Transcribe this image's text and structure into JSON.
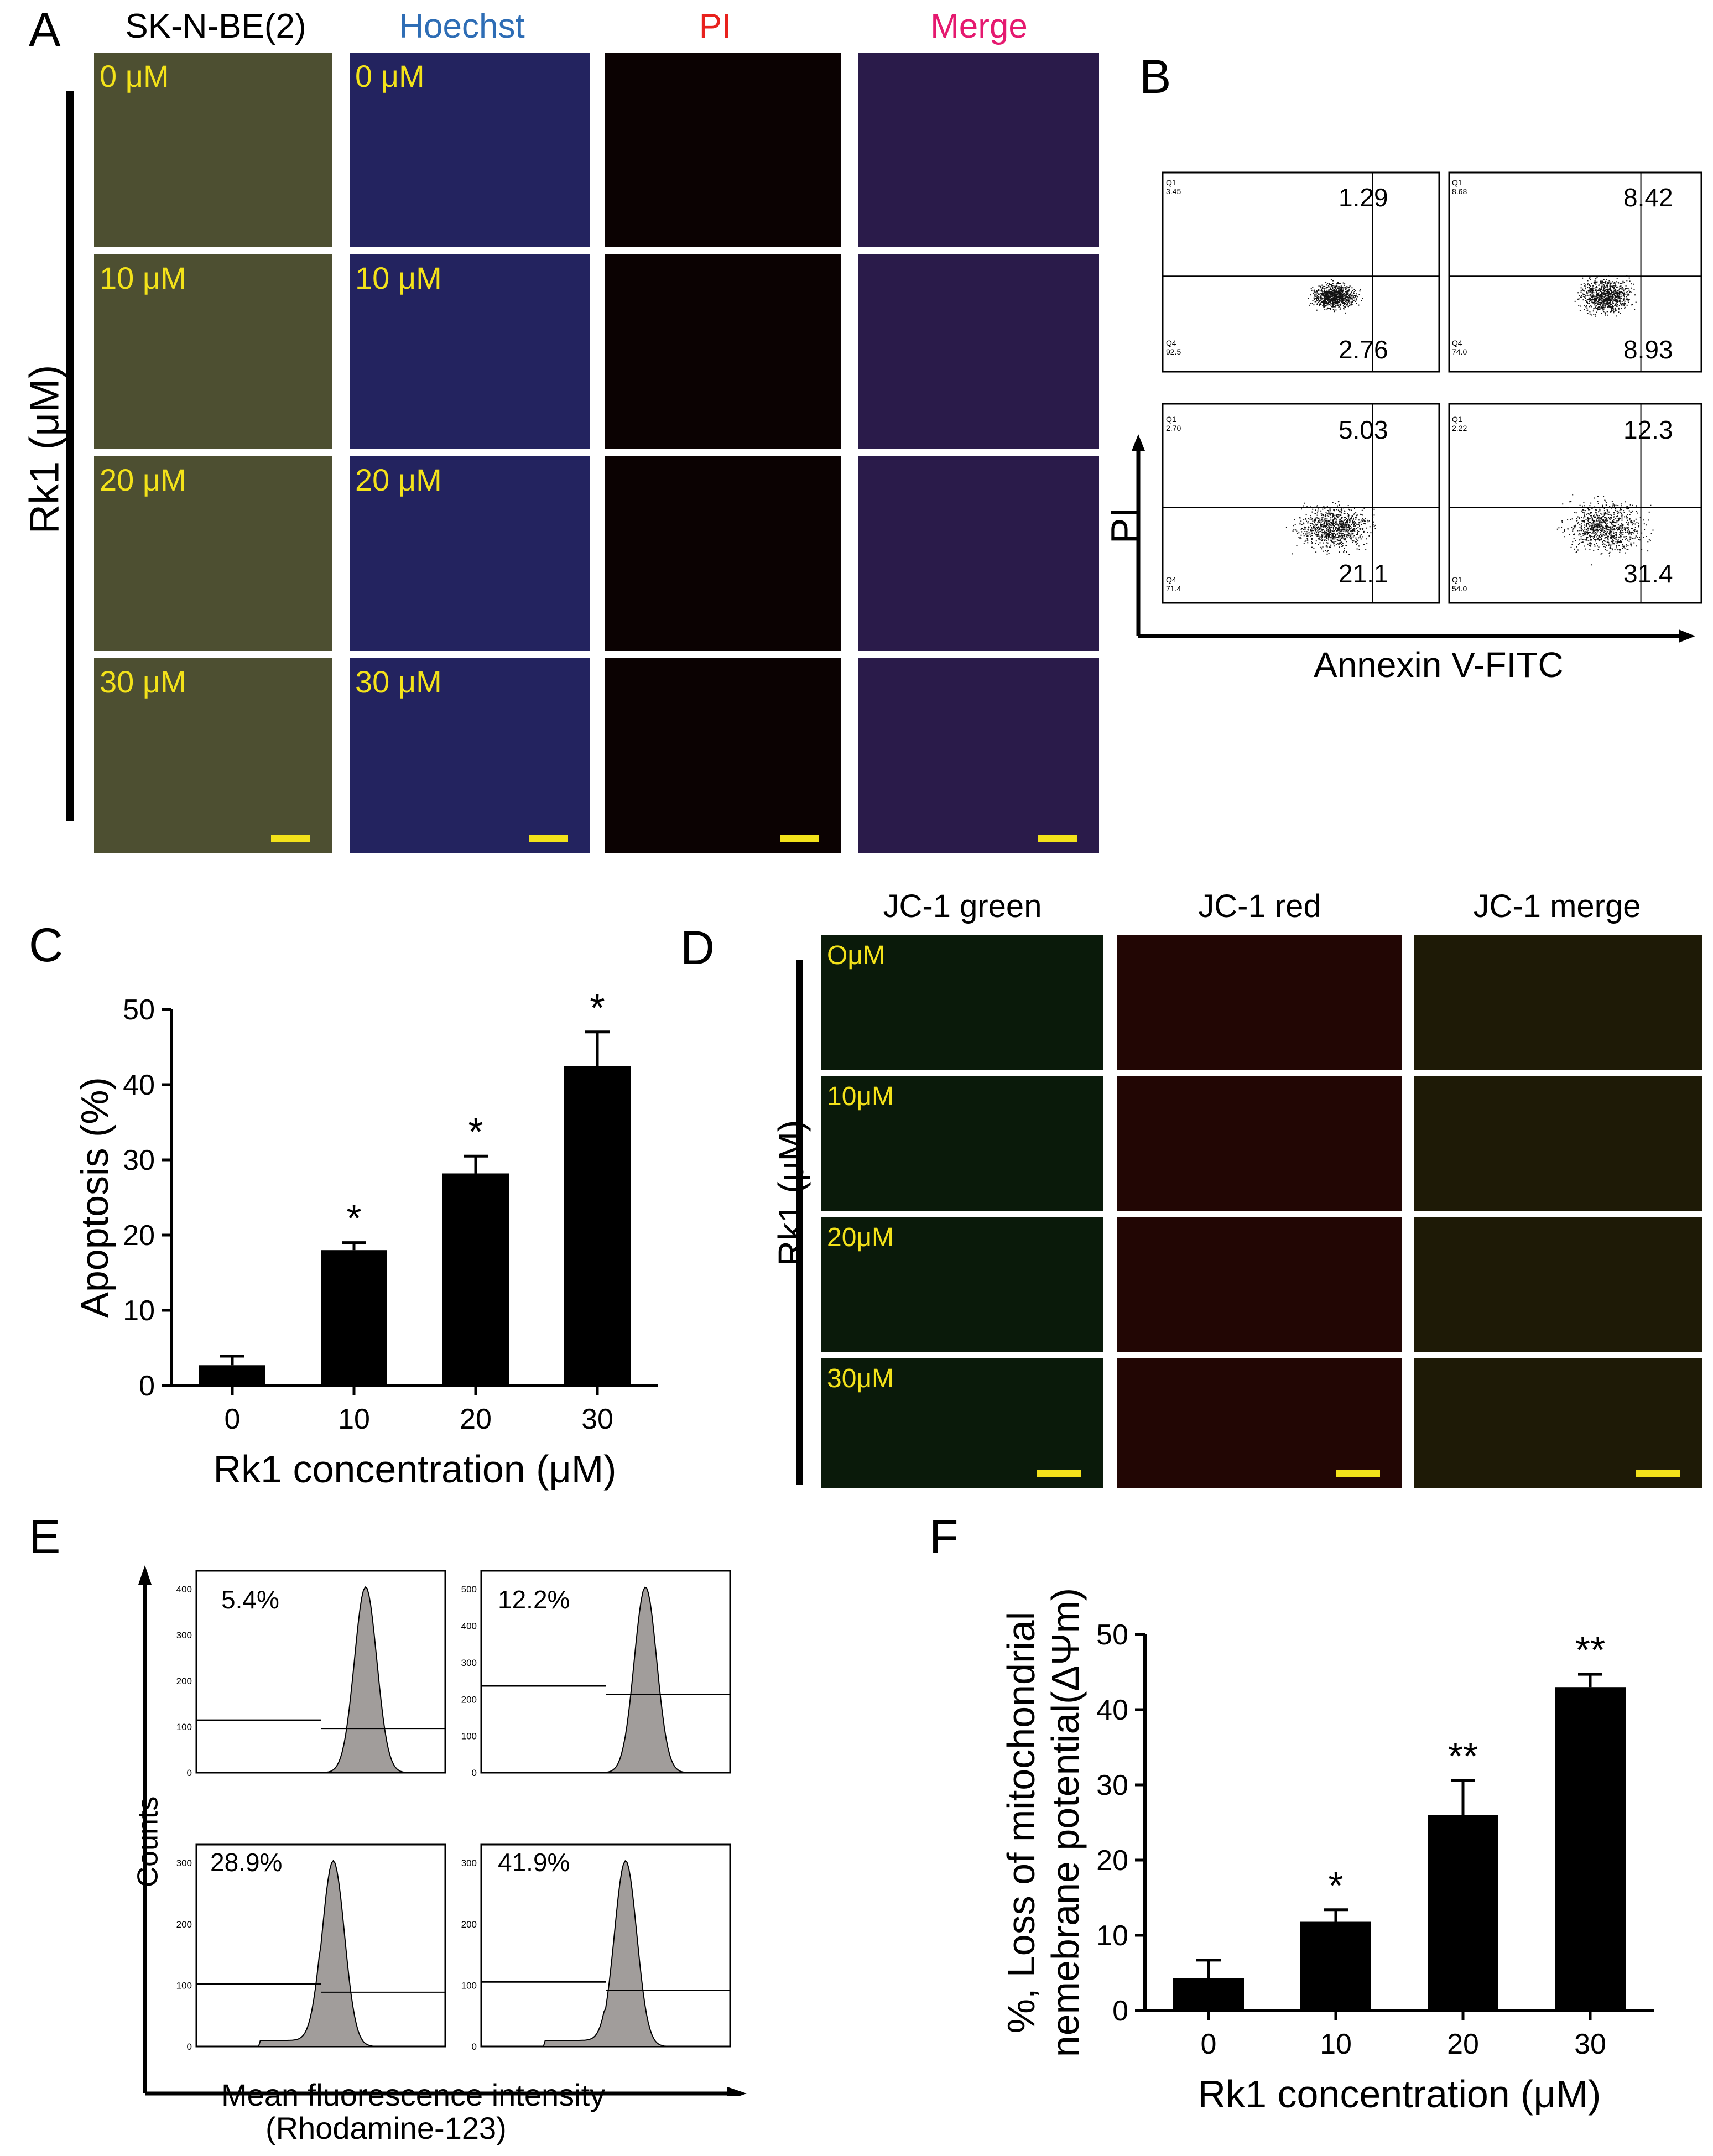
{
  "panel_letters": {
    "a": "A",
    "b": "B",
    "c": "C",
    "d": "D",
    "e": "E",
    "f": "F"
  },
  "panel_a": {
    "column_headers": [
      "SK-N-BE(2)",
      "Hoechst",
      "PI",
      "Merge"
    ],
    "header_colors": [
      "#000000",
      "#2e6db5",
      "#e8211d",
      "#e5196f"
    ],
    "row_label": "Rk1 (μM)",
    "doses": [
      "0 μM",
      "10 μM",
      "20 μM",
      "30 μM"
    ]
  },
  "panel_b": {
    "xlabel": "Annexin V-FITC",
    "ylabel": "PI",
    "plots": [
      {
        "q2": "1.29",
        "q3": "2.76",
        "q1_small": "Q1\n3.45",
        "q4_small": "Q4\n92.5"
      },
      {
        "q2": "8.42",
        "q3": "8.93",
        "q1_small": "Q1\n8.68",
        "q4_small": "Q4\n74.0"
      },
      {
        "q2": "5.03",
        "q3": "21.1",
        "q1_small": "Q1\n2.70",
        "q4_small": "Q4\n71.4"
      },
      {
        "q2": "12.3",
        "q3": "31.4",
        "q1_small": "Q1\n2.22",
        "q4_small": "Q1\n54.0"
      }
    ]
  },
  "panel_c": {
    "chart_data": {
      "type": "bar",
      "categories": [
        "0",
        "10",
        "20",
        "30"
      ],
      "values": [
        2.7,
        18,
        28.2,
        42.5
      ],
      "errors": [
        1.2,
        1.0,
        2.3,
        4.5
      ],
      "significance": [
        "",
        "*",
        "*",
        "*"
      ],
      "xlabel": "Rk1 concentration (μM)",
      "ylabel": "Apoptosis (%)",
      "ylim": [
        0,
        50
      ],
      "yticks": [
        "0",
        "10",
        "20",
        "30",
        "40",
        "50"
      ]
    }
  },
  "panel_d": {
    "column_headers": [
      "JC-1 green",
      "JC-1 red",
      "JC-1 merge"
    ],
    "row_label": "Rk1 (μM)",
    "doses": [
      "OμM",
      "10μM",
      "20μM",
      "30μM"
    ]
  },
  "panel_e": {
    "ylabel": "Counts",
    "xlabel_line1": "Mean fluorescence intensity",
    "xlabel_line2": "(Rhodamine-123)",
    "histograms": [
      {
        "percent": "5.4%",
        "yticks": [
          "0",
          "100",
          "200",
          "300",
          "400"
        ]
      },
      {
        "percent": "12.2%",
        "yticks": [
          "0",
          "100",
          "200",
          "300",
          "400",
          "500"
        ]
      },
      {
        "percent": "28.9%",
        "yticks": [
          "0",
          "100",
          "200",
          "300"
        ]
      },
      {
        "percent": "41.9%",
        "yticks": [
          "0",
          "100",
          "200",
          "300"
        ]
      }
    ]
  },
  "panel_f": {
    "chart_data": {
      "type": "bar",
      "categories": [
        "0",
        "10",
        "20",
        "30"
      ],
      "values": [
        4.3,
        11.8,
        26,
        43
      ],
      "errors": [
        2.4,
        1.6,
        4.6,
        1.7
      ],
      "significance": [
        "",
        "*",
        "**",
        "**"
      ],
      "xlabel": "Rk1 concentration (μM)",
      "ylabel_line1": "%, Loss of mitochondrial",
      "ylabel_line2": "nemebrane potential(ΔΨm)",
      "ylim": [
        0,
        50
      ],
      "yticks": [
        "0",
        "10",
        "20",
        "30",
        "40",
        "50"
      ]
    }
  }
}
